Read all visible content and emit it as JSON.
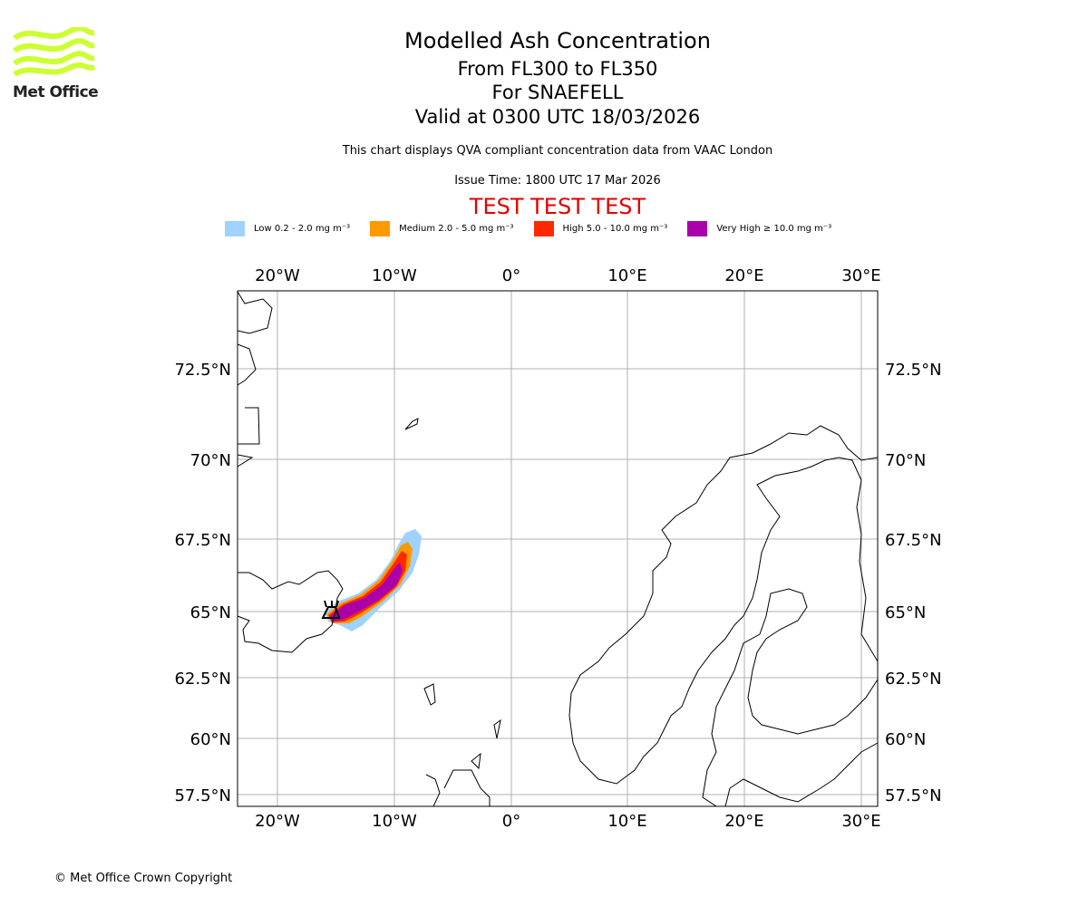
{
  "logo": {
    "text": "Met Office"
  },
  "header": {
    "title": "Modelled Ash Concentration",
    "levels": "From FL300 to FL350",
    "volcano": "For SNAEFELL",
    "valid": "Valid at 0300 UTC 18/03/2026",
    "description": "This chart displays QVA compliant concentration data from VAAC London",
    "issue_time": "Issue Time: 1800 UTC 17 Mar 2026",
    "test_banner": "TEST TEST TEST"
  },
  "legend": [
    {
      "label": "Low 0.2 - 2.0 mg m⁻³",
      "color": "#a0d2ff"
    },
    {
      "label": "Medium 2.0 - 5.0 mg m⁻³",
      "color": "#ff9900"
    },
    {
      "label": "High 5.0 - 10.0 mg m⁻³",
      "color": "#ff2800"
    },
    {
      "label": "Very High ≥ 10.0 mg m⁻³",
      "color": "#aa00aa"
    }
  ],
  "map": {
    "lon_labels": [
      "20°W",
      "10°W",
      "0°",
      "10°E",
      "20°E",
      "30°E"
    ],
    "lat_labels": [
      "72.5°N",
      "70°N",
      "67.5°N",
      "65°N",
      "62.5°N",
      "60°N",
      "57.5°N"
    ],
    "volcano_icon": "volcano-icon"
  },
  "footer": {
    "copyright": "© Met Office Crown Copyright"
  }
}
